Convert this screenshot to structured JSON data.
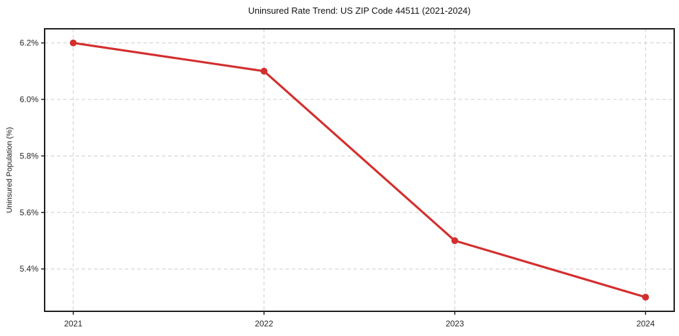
{
  "chart_data": {
    "type": "line",
    "title": "Uninsured Rate Trend: US ZIP Code 44511 (2021-2024)",
    "xlabel": "",
    "ylabel": "Uninsured Population (%)",
    "series_name": "uninsured-rate",
    "x": [
      2021,
      2022,
      2023,
      2024
    ],
    "values": [
      6.2,
      6.1,
      5.5,
      5.3
    ],
    "x_tick_labels": [
      "2021",
      "2022",
      "2023",
      "2024"
    ],
    "y_ticks": [
      5.4,
      5.6,
      5.8,
      6.0,
      6.2
    ],
    "y_tick_labels": [
      "5.4%",
      "5.6%",
      "5.8%",
      "6.0%",
      "6.2%"
    ],
    "xlim": [
      2020.85,
      2024.15
    ],
    "ylim": [
      5.25,
      6.25
    ],
    "grid": true,
    "grid_style": "dashed",
    "legend": false,
    "line_color": "#d32f2f",
    "marker": "circle",
    "line_width": 3.2,
    "marker_radius": 5
  }
}
